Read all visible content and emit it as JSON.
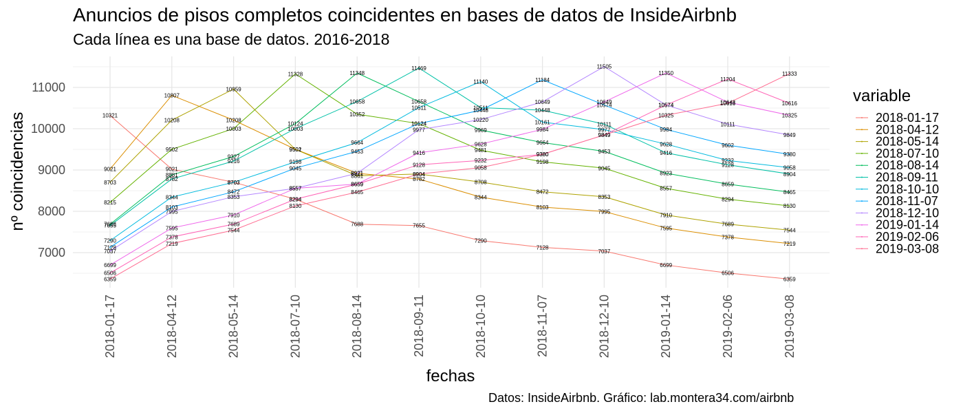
{
  "chart_data": {
    "type": "line",
    "title": "Anuncios de pisos completos coincidentes en bases de datos de InsideAirbnb",
    "subtitle": "Cada línea es una base de datos. 2016-2018",
    "caption": "Datos: InsideAirbnb. Gráfico: lab.montera34.com/airbnb",
    "xlabel": "fechas",
    "ylabel": "nº coincidencias",
    "ylim": [
      6150,
      11750
    ],
    "yticks": [
      7000,
      8000,
      9000,
      10000,
      11000
    ],
    "legend_title": "variable",
    "legend_position": "right",
    "grid": true,
    "x": [
      "2018-01-17",
      "2018-04-12",
      "2018-05-14",
      "2018-07-10",
      "2018-08-14",
      "2018-09-11",
      "2018-10-10",
      "2018-11-07",
      "2018-12-10",
      "2019-01-14",
      "2019-02-06",
      "2019-03-08"
    ],
    "series": [
      {
        "name": "2018-01-17",
        "color": "#F8766D",
        "values": [
          10321,
          9021,
          8703,
          8294,
          7688,
          7655,
          7290,
          7128,
          7037,
          6699,
          6506,
          6359
        ]
      },
      {
        "name": "2018-04-12",
        "color": "#DB8E00",
        "values": [
          9021,
          10807,
          10208,
          9502,
          8921,
          8782,
          8344,
          8103,
          7995,
          7595,
          7378,
          7219
        ]
      },
      {
        "name": "2018-05-14",
        "color": "#AEA200",
        "values": [
          8703,
          10208,
          10959,
          9501,
          8861,
          8904,
          8708,
          8472,
          8353,
          7910,
          7689,
          7544
        ]
      },
      {
        "name": "2018-07-10",
        "color": "#64B200",
        "values": [
          8215,
          9502,
          10003,
          11328,
          10352,
          10124,
          9481,
          9198,
          9045,
          8557,
          8294,
          8130
        ]
      },
      {
        "name": "2018-08-14",
        "color": "#00BD5C",
        "values": [
          7688,
          8881,
          9327,
          10124,
          11348,
          10658,
          9969,
          9664,
          9453,
          8923,
          8659,
          8465
        ]
      },
      {
        "name": "2018-09-11",
        "color": "#00C1A7",
        "values": [
          7655,
          8782,
          9216,
          10003,
          10658,
          11469,
          10511,
          10448,
          10111,
          9416,
          9128,
          8904
        ]
      },
      {
        "name": "2018-10-10",
        "color": "#00BADE",
        "values": [
          7290,
          8344,
          8703,
          9198,
          9664,
          10511,
          11140,
          10161,
          9977,
          9628,
          9232,
          9058
        ]
      },
      {
        "name": "2018-11-07",
        "color": "#00A6FF",
        "values": [
          7128,
          8103,
          8472,
          9045,
          9453,
          10124,
          10448,
          11184,
          10574,
          9984,
          9602,
          9380
        ]
      },
      {
        "name": "2018-12-10",
        "color": "#B385FF",
        "values": [
          7037,
          7995,
          8353,
          8557,
          8921,
          9977,
          10220,
          10649,
          11505,
          10574,
          10111,
          9849
        ]
      },
      {
        "name": "2019-01-14",
        "color": "#EF67EB",
        "values": [
          6699,
          7595,
          7910,
          8557,
          8659,
          9416,
          9628,
          9984,
          10649,
          11350,
          10643,
          10325
        ]
      },
      {
        "name": "2019-02-06",
        "color": "#FF63B6",
        "values": [
          6506,
          7378,
          7689,
          8294,
          8659,
          9128,
          9232,
          9380,
          9849,
          10574,
          11204,
          10616
        ]
      },
      {
        "name": "2019-03-08",
        "color": "#FF6C91",
        "values": [
          6359,
          7219,
          7544,
          8130,
          8465,
          8904,
          9058,
          9380,
          9849,
          10325,
          10616,
          11333
        ]
      }
    ]
  }
}
